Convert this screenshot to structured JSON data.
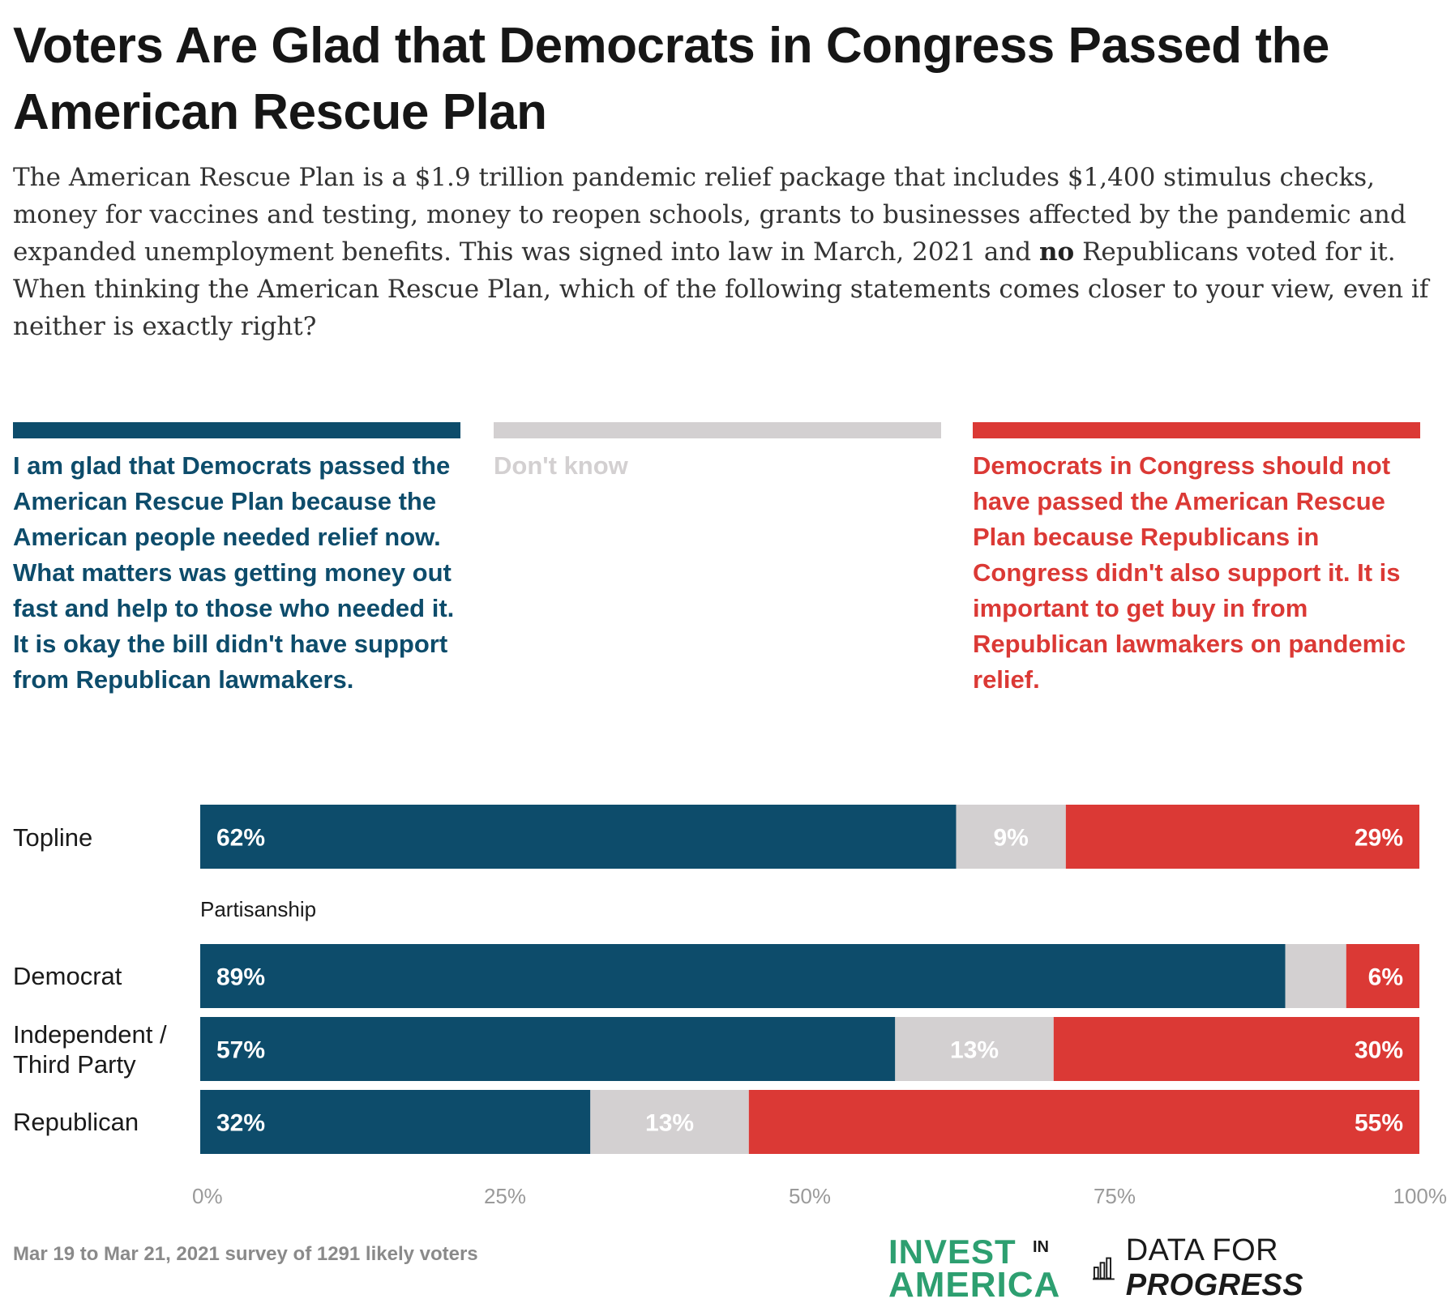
{
  "title": "Voters Are Glad that Democrats in Congress Passed the American Rescue Plan",
  "intro": {
    "part1": "The American Rescue Plan is a $1.9 trillion pandemic relief package that includes $1,400 stimulus checks, money for vaccines and testing, money to reopen schools, grants to businesses affected by the pandemic and expanded unemployment benefits. This was signed into law in March, 2021 and ",
    "bold": "no",
    "part2": " Republicans voted for it.",
    "question": "When thinking the American Rescue Plan, which of the following statements comes closer to your view, even if neither is exactly right?"
  },
  "legend": [
    {
      "key": "glad",
      "color": "#0d4c6b",
      "text": "I am glad that Democrats passed the American Rescue Plan because the American people needed relief now. What matters was getting money out fast and help to those who needed it. It is okay the bill didn't have support from Republican lawmakers."
    },
    {
      "key": "dontknow",
      "color": "#d3d0d1",
      "text": "Don't know"
    },
    {
      "key": "shouldnot",
      "color": "#db3935",
      "text": "Democrats in Congress should not have passed the American Rescue Plan because Republicans in Congress didn't also support it. It is important to get buy in from Republican lawmakers on pandemic relief."
    }
  ],
  "section_label": "Partisanship",
  "rows": [
    {
      "label": "Topline"
    },
    {
      "label": "Democrat"
    },
    {
      "label_line1": "Independent /",
      "label_line2": "Third Party"
    },
    {
      "label": "Republican"
    }
  ],
  "chart_data": {
    "type": "bar",
    "orientation": "horizontal",
    "stacked": true,
    "categories": [
      "Topline",
      "Democrat",
      "Independent / Third Party",
      "Republican"
    ],
    "series": [
      {
        "name": "I am glad that Democrats passed the American Rescue Plan",
        "color": "#0d4c6b",
        "values": [
          62,
          89,
          57,
          32
        ],
        "labels": [
          "62%",
          "89%",
          "57%",
          "32%"
        ]
      },
      {
        "name": "Don't know",
        "color": "#d3d0d1",
        "values": [
          9,
          5,
          13,
          13
        ],
        "labels": [
          "9%",
          "",
          "13%",
          "13%"
        ]
      },
      {
        "name": "Democrats in Congress should not have passed the American Rescue Plan",
        "color": "#db3935",
        "values": [
          29,
          6,
          30,
          55
        ],
        "labels": [
          "29%",
          "6%",
          "30%",
          "55%"
        ]
      }
    ],
    "xlim": [
      0,
      100
    ],
    "xticks": [
      "0%",
      "25%",
      "50%",
      "75%",
      "100%"
    ],
    "grid": false
  },
  "footer": {
    "note": "Mar 19 to Mar 21, 2021 survey of 1291 likely voters",
    "logo_invest_line1": "INVEST",
    "logo_invest_small": "IN",
    "logo_invest_line2": "AMERICA",
    "logo_dfp_regular": "DATA FOR ",
    "logo_dfp_bold": "PROGRESS"
  }
}
